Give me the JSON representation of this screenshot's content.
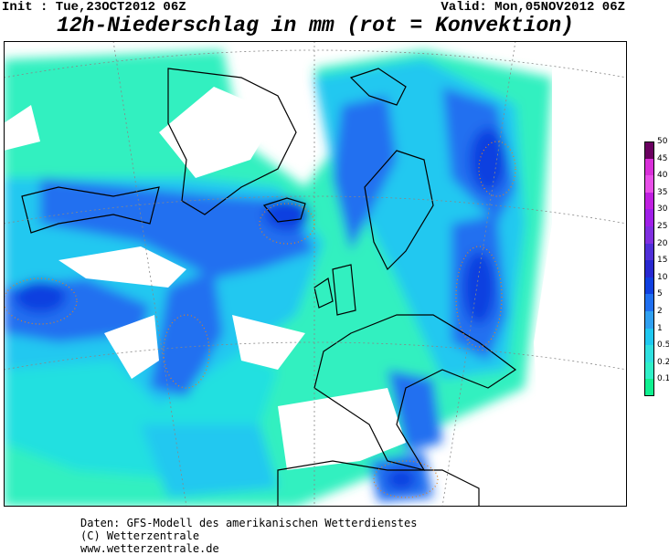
{
  "header": {
    "init": "Init : Tue,23OCT2012 06Z",
    "valid": "Valid: Mon,05NOV2012 06Z",
    "title": "12h-Niederschlag in mm (rot = Konvektion)"
  },
  "legend": [
    {
      "label": "50",
      "color": "#6a0060"
    },
    {
      "label": "45",
      "color": "#d830d8"
    },
    {
      "label": "40",
      "color": "#e850e8"
    },
    {
      "label": "35",
      "color": "#c020e0"
    },
    {
      "label": "30",
      "color": "#a020e8"
    },
    {
      "label": "25",
      "color": "#8030e0"
    },
    {
      "label": "20",
      "color": "#5030d8"
    },
    {
      "label": "15",
      "color": "#2828d0"
    },
    {
      "label": "10",
      "color": "#1040e0"
    },
    {
      "label": "5",
      "color": "#2070f0"
    },
    {
      "label": "2",
      "color": "#30a0f0"
    },
    {
      "label": "1",
      "color": "#20c8f0"
    },
    {
      "label": "0.5",
      "color": "#30e0e0"
    },
    {
      "label": "0.2",
      "color": "#30f0c8"
    },
    {
      "label": "0.1",
      "color": "#10f090"
    }
  ],
  "footer": {
    "line1": "Daten: GFS-Modell des amerikanischen Wetterdienstes",
    "line2": "(C) Wetterzentrale",
    "line3": "www.wetterzentrale.de"
  }
}
